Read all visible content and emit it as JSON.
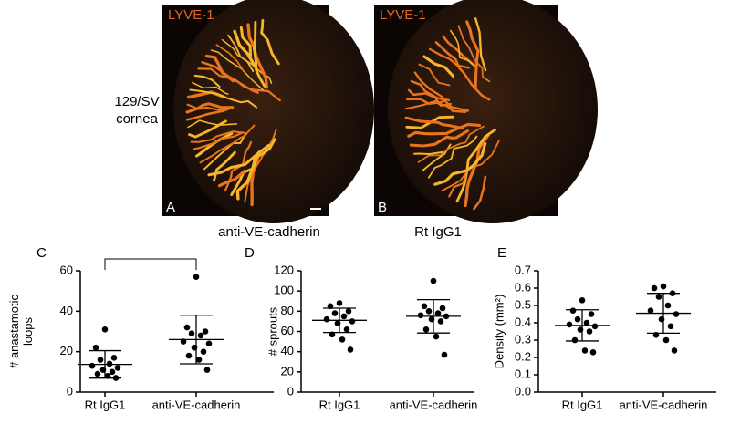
{
  "figure": {
    "images": [
      {
        "stain": "LYVE-1",
        "panel": "A",
        "caption": "anti-VE-cadherin"
      },
      {
        "stain": "LYVE-1",
        "panel": "B",
        "caption": "Rt IgG1"
      }
    ],
    "row_label": [
      "129/SV",
      "cornea"
    ]
  },
  "chart_data": [
    {
      "type": "scatter",
      "panel": "C",
      "y_label": [
        "# anastamotic",
        "loops"
      ],
      "categories": [
        "Rt IgG1",
        "anti-VE-cadherin"
      ],
      "color": "#000000",
      "groups": [
        {
          "values": [
            31,
            22,
            17,
            16,
            14,
            13,
            12,
            11,
            10,
            9,
            8,
            7
          ],
          "mean": 13.7,
          "error": 6.8
        },
        {
          "values": [
            57,
            32,
            30,
            29,
            28,
            25,
            24,
            22,
            20,
            18,
            16,
            11
          ],
          "mean": 26,
          "error": 12
        }
      ],
      "ylim": [
        0,
        60
      ],
      "yticks": [
        0,
        20,
        40,
        60
      ]
    },
    {
      "type": "scatter",
      "panel": "D",
      "y_label": [
        "# sprouts"
      ],
      "categories": [
        "Rt IgG1",
        "anti-VE-cadherin"
      ],
      "color": "#000000",
      "groups": [
        {
          "values": [
            88,
            85,
            80,
            78,
            75,
            72,
            70,
            68,
            62,
            57,
            52,
            42
          ],
          "mean": 71,
          "error": 12
        },
        {
          "values": [
            110,
            85,
            83,
            80,
            78,
            76,
            75,
            72,
            70,
            62,
            55,
            37
          ],
          "mean": 75,
          "error": 16.5
        }
      ],
      "ylim": [
        0,
        120
      ],
      "yticks": [
        0,
        20,
        40,
        60,
        80,
        100,
        120
      ]
    },
    {
      "type": "scatter",
      "panel": "E",
      "y_label": [
        "Density (mm²)"
      ],
      "categories": [
        "Rt IgG1",
        "anti-VE-cadherin"
      ],
      "color": "#000000",
      "groups": [
        {
          "values": [
            0.53,
            0.47,
            0.45,
            0.42,
            0.4,
            0.39,
            0.38,
            0.36,
            0.35,
            0.3,
            0.24,
            0.23
          ],
          "mean": 0.385,
          "error": 0.09
        },
        {
          "values": [
            0.61,
            0.6,
            0.57,
            0.55,
            0.5,
            0.47,
            0.45,
            0.42,
            0.38,
            0.33,
            0.3,
            0.24
          ],
          "mean": 0.455,
          "error": 0.115
        }
      ],
      "ylim": [
        0,
        0.7
      ],
      "yticks": [
        {
          "value": 0,
          "label": "0.0"
        },
        0.1,
        0.2,
        0.3,
        0.4,
        0.5,
        0.6,
        0.7
      ]
    }
  ]
}
